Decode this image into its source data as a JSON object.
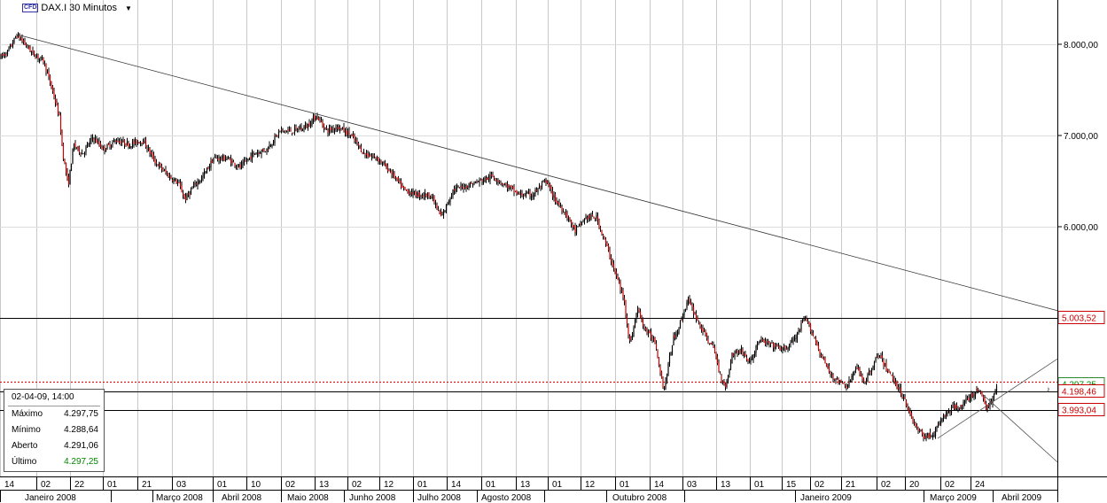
{
  "header": {
    "cfd_badge": "CFD",
    "title": "DAX.I 30 Minutos",
    "dropdown_icon": "chevron-down-icon"
  },
  "tooltip": {
    "date": "02-04-09, 14:00",
    "rows": [
      {
        "label": "Máximo",
        "value": "4.297,75"
      },
      {
        "label": "Mínimo",
        "value": "4.288,64"
      },
      {
        "label": "Aberto",
        "value": "4.291,06"
      },
      {
        "label": "Último",
        "value": "4.297,25"
      }
    ]
  },
  "colors": {
    "up": "#000000",
    "down": "#cc0000",
    "last_price": "#008800",
    "level_label": "#cc0000",
    "grid": "#c8c8c8"
  },
  "chart_data": {
    "type": "candlestick",
    "title": "DAX.I 30 Minutos",
    "ylim": [
      3350,
      8500
    ],
    "grid": true,
    "y_ticks": [
      {
        "value": 8000,
        "label": "8.000,00"
      },
      {
        "value": 7000,
        "label": "7.000,00"
      },
      {
        "value": 6000,
        "label": "6.000,00"
      }
    ],
    "x_day_ticks": [
      "14",
      "02",
      "22",
      "01",
      "21",
      "03",
      "01",
      "10",
      "02",
      "13",
      "02",
      "12",
      "01",
      "14",
      "01",
      "13",
      "01",
      "12",
      "01",
      "14",
      "03",
      "13",
      "01",
      "15",
      "02",
      "21",
      "02",
      "20",
      "02",
      "24"
    ],
    "x_month_labels": [
      "Janeiro 2008",
      "Março 2008",
      "Abril 2008",
      "Maio 2008",
      "Junho 2008",
      "Julho 2008",
      "Agosto 2008",
      "Outubro 2008",
      "Janeiro 2009",
      "Março 2009",
      "Abril 2009"
    ],
    "price_path": [
      {
        "t": 0,
        "p": 7860
      },
      {
        "t": 8,
        "p": 7920
      },
      {
        "t": 18,
        "p": 8100
      },
      {
        "t": 26,
        "p": 8020
      },
      {
        "t": 36,
        "p": 7900
      },
      {
        "t": 48,
        "p": 7820
      },
      {
        "t": 58,
        "p": 7500
      },
      {
        "t": 66,
        "p": 7200
      },
      {
        "t": 70,
        "p": 6800
      },
      {
        "t": 76,
        "p": 6450
      },
      {
        "t": 82,
        "p": 6900
      },
      {
        "t": 92,
        "p": 6800
      },
      {
        "t": 104,
        "p": 6980
      },
      {
        "t": 116,
        "p": 6850
      },
      {
        "t": 130,
        "p": 6950
      },
      {
        "t": 145,
        "p": 6900
      },
      {
        "t": 160,
        "p": 6950
      },
      {
        "t": 175,
        "p": 6700
      },
      {
        "t": 190,
        "p": 6550
      },
      {
        "t": 200,
        "p": 6480
      },
      {
        "t": 208,
        "p": 6300
      },
      {
        "t": 218,
        "p": 6450
      },
      {
        "t": 228,
        "p": 6550
      },
      {
        "t": 240,
        "p": 6750
      },
      {
        "t": 255,
        "p": 6750
      },
      {
        "t": 270,
        "p": 6650
      },
      {
        "t": 285,
        "p": 6800
      },
      {
        "t": 300,
        "p": 6850
      },
      {
        "t": 315,
        "p": 7050
      },
      {
        "t": 330,
        "p": 7050
      },
      {
        "t": 345,
        "p": 7100
      },
      {
        "t": 356,
        "p": 7220
      },
      {
        "t": 368,
        "p": 7050
      },
      {
        "t": 380,
        "p": 7100
      },
      {
        "t": 395,
        "p": 7000
      },
      {
        "t": 410,
        "p": 6800
      },
      {
        "t": 425,
        "p": 6750
      },
      {
        "t": 440,
        "p": 6600
      },
      {
        "t": 455,
        "p": 6400
      },
      {
        "t": 470,
        "p": 6350
      },
      {
        "t": 485,
        "p": 6350
      },
      {
        "t": 497,
        "p": 6100
      },
      {
        "t": 510,
        "p": 6400
      },
      {
        "t": 525,
        "p": 6450
      },
      {
        "t": 540,
        "p": 6500
      },
      {
        "t": 555,
        "p": 6550
      },
      {
        "t": 570,
        "p": 6450
      },
      {
        "t": 585,
        "p": 6350
      },
      {
        "t": 600,
        "p": 6350
      },
      {
        "t": 615,
        "p": 6500
      },
      {
        "t": 625,
        "p": 6300
      },
      {
        "t": 637,
        "p": 6150
      },
      {
        "t": 648,
        "p": 5950
      },
      {
        "t": 660,
        "p": 6100
      },
      {
        "t": 672,
        "p": 6100
      },
      {
        "t": 683,
        "p": 5800
      },
      {
        "t": 693,
        "p": 5500
      },
      {
        "t": 703,
        "p": 5200
      },
      {
        "t": 710,
        "p": 4700
      },
      {
        "t": 718,
        "p": 5100
      },
      {
        "t": 728,
        "p": 4850
      },
      {
        "t": 738,
        "p": 4750
      },
      {
        "t": 748,
        "p": 4200
      },
      {
        "t": 758,
        "p": 4750
      },
      {
        "t": 765,
        "p": 4900
      },
      {
        "t": 775,
        "p": 5200
      },
      {
        "t": 785,
        "p": 5000
      },
      {
        "t": 795,
        "p": 4800
      },
      {
        "t": 805,
        "p": 4650
      },
      {
        "t": 812,
        "p": 4350
      },
      {
        "t": 818,
        "p": 4250
      },
      {
        "t": 825,
        "p": 4600
      },
      {
        "t": 835,
        "p": 4650
      },
      {
        "t": 845,
        "p": 4500
      },
      {
        "t": 855,
        "p": 4750
      },
      {
        "t": 870,
        "p": 4700
      },
      {
        "t": 885,
        "p": 4650
      },
      {
        "t": 898,
        "p": 4800
      },
      {
        "t": 907,
        "p": 5000
      },
      {
        "t": 915,
        "p": 4850
      },
      {
        "t": 925,
        "p": 4600
      },
      {
        "t": 935,
        "p": 4400
      },
      {
        "t": 945,
        "p": 4300
      },
      {
        "t": 955,
        "p": 4250
      },
      {
        "t": 965,
        "p": 4450
      },
      {
        "t": 975,
        "p": 4300
      },
      {
        "t": 990,
        "p": 4600
      },
      {
        "t": 1002,
        "p": 4400
      },
      {
        "t": 1012,
        "p": 4250
      },
      {
        "t": 1022,
        "p": 4050
      },
      {
        "t": 1032,
        "p": 3800
      },
      {
        "t": 1042,
        "p": 3700
      },
      {
        "t": 1052,
        "p": 3720
      },
      {
        "t": 1062,
        "p": 3900
      },
      {
        "t": 1072,
        "p": 4000
      },
      {
        "t": 1085,
        "p": 4050
      },
      {
        "t": 1095,
        "p": 4150
      },
      {
        "t": 1105,
        "p": 4220
      },
      {
        "t": 1112,
        "p": 4000
      },
      {
        "t": 1118,
        "p": 4080
      },
      {
        "t": 1124,
        "p": 4297
      }
    ],
    "trendline": {
      "from": {
        "t": 18,
        "p": 8110
      },
      "to": {
        "t": 1193,
        "p": 5080
      }
    },
    "channel_lines": [
      {
        "from": {
          "t": 1058,
          "p": 3680
        },
        "to": {
          "t": 1193,
          "p": 4550
        }
      },
      {
        "from": {
          "t": 1110,
          "p": 4150
        },
        "to": {
          "t": 1193,
          "p": 3420
        }
      }
    ],
    "horizontal_levels": [
      {
        "value": 5003.52,
        "label": "5.003,52",
        "style": "solid"
      },
      {
        "value": 4297.25,
        "label": "4.297,25",
        "style": "dotted-red",
        "last": true
      },
      {
        "value": 4198.46,
        "label": "4.198,46",
        "style": "solid"
      },
      {
        "value": 3993.04,
        "label": "3.993,04",
        "style": "solid"
      }
    ]
  }
}
